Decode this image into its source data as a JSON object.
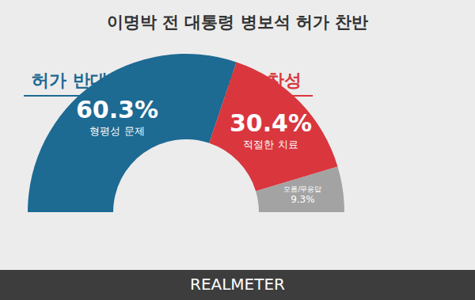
{
  "chart_data": {
    "type": "pie",
    "title": "이명박 전 대통령 병보석 허가 찬반",
    "categories": [
      "허가 반대",
      "허가 찬성",
      "모름/무응답"
    ],
    "values": [
      60.3,
      30.4,
      9.3
    ],
    "value_labels": [
      "60.3%",
      "30.4%",
      "9.3%"
    ],
    "notes": [
      "형평성 문제",
      "적절한 치료",
      null
    ],
    "colors": [
      "#1d6a93",
      "#d9363e",
      "#a3a3a3"
    ],
    "data_labels": true,
    "source": "REALMETER"
  }
}
